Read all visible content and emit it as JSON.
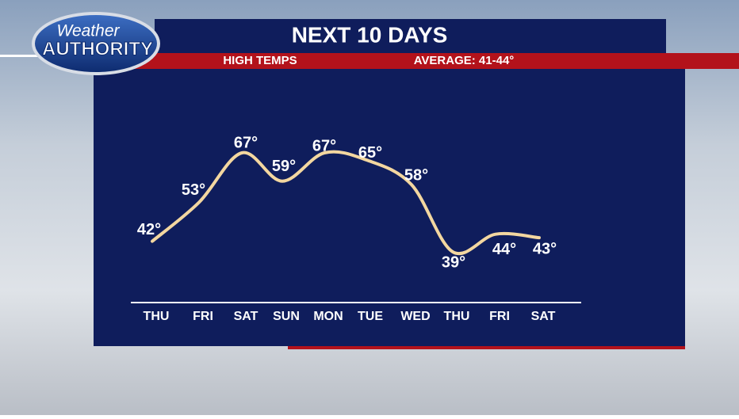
{
  "chart_data": {
    "type": "line",
    "title": "NEXT 10 DAYS",
    "subtitle": "HIGH TEMPS",
    "annotation": "AVERAGE: 41-44°",
    "logo": {
      "top": "Weather",
      "bottom": "AUTHORITY"
    },
    "categories": [
      "THU",
      "FRI",
      "SAT",
      "SUN",
      "MON",
      "TUE",
      "WED",
      "THU",
      "FRI",
      "SAT"
    ],
    "values": [
      42,
      53,
      67,
      59,
      67,
      65,
      58,
      39,
      44,
      43
    ],
    "value_labels": [
      "42°",
      "53°",
      "67°",
      "59°",
      "67°",
      "65°",
      "58°",
      "39°",
      "44°",
      "43°"
    ],
    "color": "#f3d7a0"
  }
}
